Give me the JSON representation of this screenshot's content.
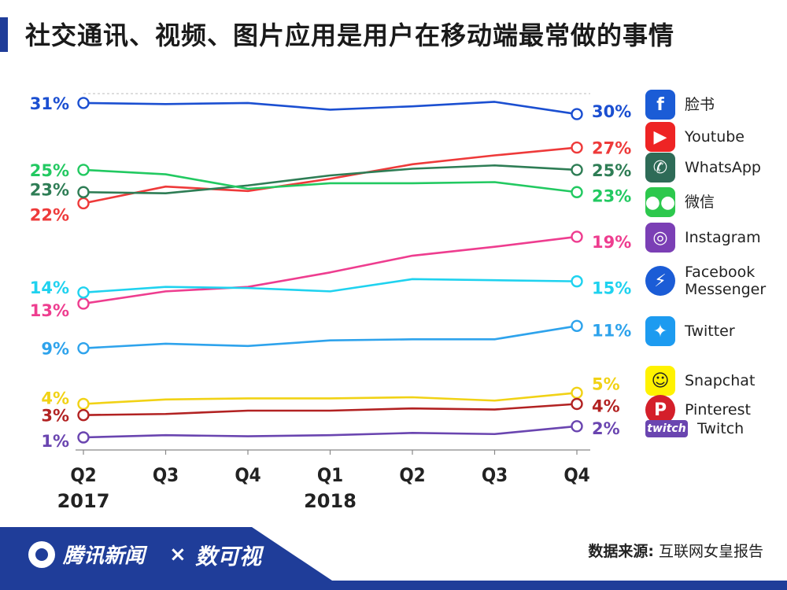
{
  "title": "社交通讯、视频、图片应用是用户在移动端最常做的事情",
  "chart_data": {
    "type": "line",
    "categories": [
      "Q2",
      "Q3",
      "Q4",
      "Q1",
      "Q2",
      "Q3",
      "Q4"
    ],
    "year_labels": [
      "2017",
      "",
      "",
      "2018",
      "",
      "",
      ""
    ],
    "grid": false,
    "legend_position": "right",
    "series": [
      {
        "name": "脸书",
        "color": "#1b4fd1",
        "values": [
          31,
          30.9,
          31,
          30.4,
          30.7,
          31.1,
          30
        ],
        "start_label": "31%",
        "end_label": "30%"
      },
      {
        "name": "Youtube",
        "color": "#ee3a3a",
        "values": [
          22,
          23.5,
          23.1,
          24.2,
          25.5,
          26.3,
          27
        ],
        "start_label": "22%",
        "end_label": "27%"
      },
      {
        "name": "WhatsApp",
        "color": "#2e7d55",
        "values": [
          23,
          22.9,
          23.6,
          24.5,
          25.1,
          25.4,
          25
        ],
        "start_label": "23%",
        "end_label": "25%"
      },
      {
        "name": "微信",
        "color": "#22c961",
        "values": [
          25,
          24.6,
          23.3,
          23.8,
          23.8,
          23.9,
          23
        ],
        "start_label": "25%",
        "end_label": "23%"
      },
      {
        "name": "Instagram",
        "color": "#ee3d8f",
        "values": [
          13,
          14.1,
          14.5,
          15.8,
          17.3,
          18.1,
          19
        ],
        "start_label": "13%",
        "end_label": "19%"
      },
      {
        "name": "Facebook Messenger",
        "color": "#1fd2ef",
        "values": [
          14,
          14.5,
          14.4,
          14.1,
          15.2,
          15.1,
          15
        ],
        "start_label": "14%",
        "end_label": "15%"
      },
      {
        "name": "Twitter",
        "color": "#2ea3ec",
        "values": [
          9,
          9.4,
          9.2,
          9.7,
          9.8,
          9.8,
          11
        ],
        "start_label": "9%",
        "end_label": "11%"
      },
      {
        "name": "Snapchat",
        "color": "#f1d215",
        "values": [
          4,
          4.4,
          4.5,
          4.5,
          4.6,
          4.3,
          5
        ],
        "start_label": "4%",
        "end_label": "5%"
      },
      {
        "name": "Pinterest",
        "color": "#b22222",
        "values": [
          3,
          3.1,
          3.4,
          3.4,
          3.6,
          3.5,
          4
        ],
        "start_label": "3%",
        "end_label": "4%"
      },
      {
        "name": "Twitch",
        "color": "#6a45b0",
        "values": [
          1,
          1.2,
          1.1,
          1.2,
          1.4,
          1.3,
          2
        ],
        "start_label": "1%",
        "end_label": "2%"
      }
    ]
  },
  "legend": [
    {
      "label": "脸书",
      "icon": "facebook-icon",
      "glyph": "f",
      "color": "#1b5cd6"
    },
    {
      "label": "Youtube",
      "icon": "youtube-icon",
      "glyph": "▶",
      "color": "#ee2424"
    },
    {
      "label": "WhatsApp",
      "icon": "whatsapp-icon",
      "glyph": "✆",
      "color": "#2e6b57"
    },
    {
      "label": "微信",
      "icon": "wechat-icon",
      "glyph": "●●",
      "color": "#2dc84d"
    },
    {
      "label": "Instagram",
      "icon": "instagram-icon",
      "glyph": "◎",
      "color": "#7b3fb5"
    },
    {
      "label": "Facebook\nMessenger",
      "icon": "messenger-icon",
      "glyph": "⚡",
      "color": "#1b5cd6"
    },
    {
      "label": "Twitter",
      "icon": "twitter-icon",
      "glyph": "✦",
      "color": "#1d9bf0"
    },
    {
      "label": "Snapchat",
      "icon": "snapchat-icon",
      "glyph": "☺",
      "color": "#fff200"
    },
    {
      "label": "Pinterest",
      "icon": "pinterest-icon",
      "glyph": "P",
      "color": "#d41f2a"
    },
    {
      "label": "Twitch",
      "icon": "twitch-icon",
      "glyph": "twitch",
      "color": "#6a45b0"
    }
  ],
  "footer": {
    "brand_left": "腾讯新闻",
    "separator": "×",
    "brand_right": "数可视",
    "source_label": "数据来源:",
    "source_value": "互联网女皇报告"
  }
}
